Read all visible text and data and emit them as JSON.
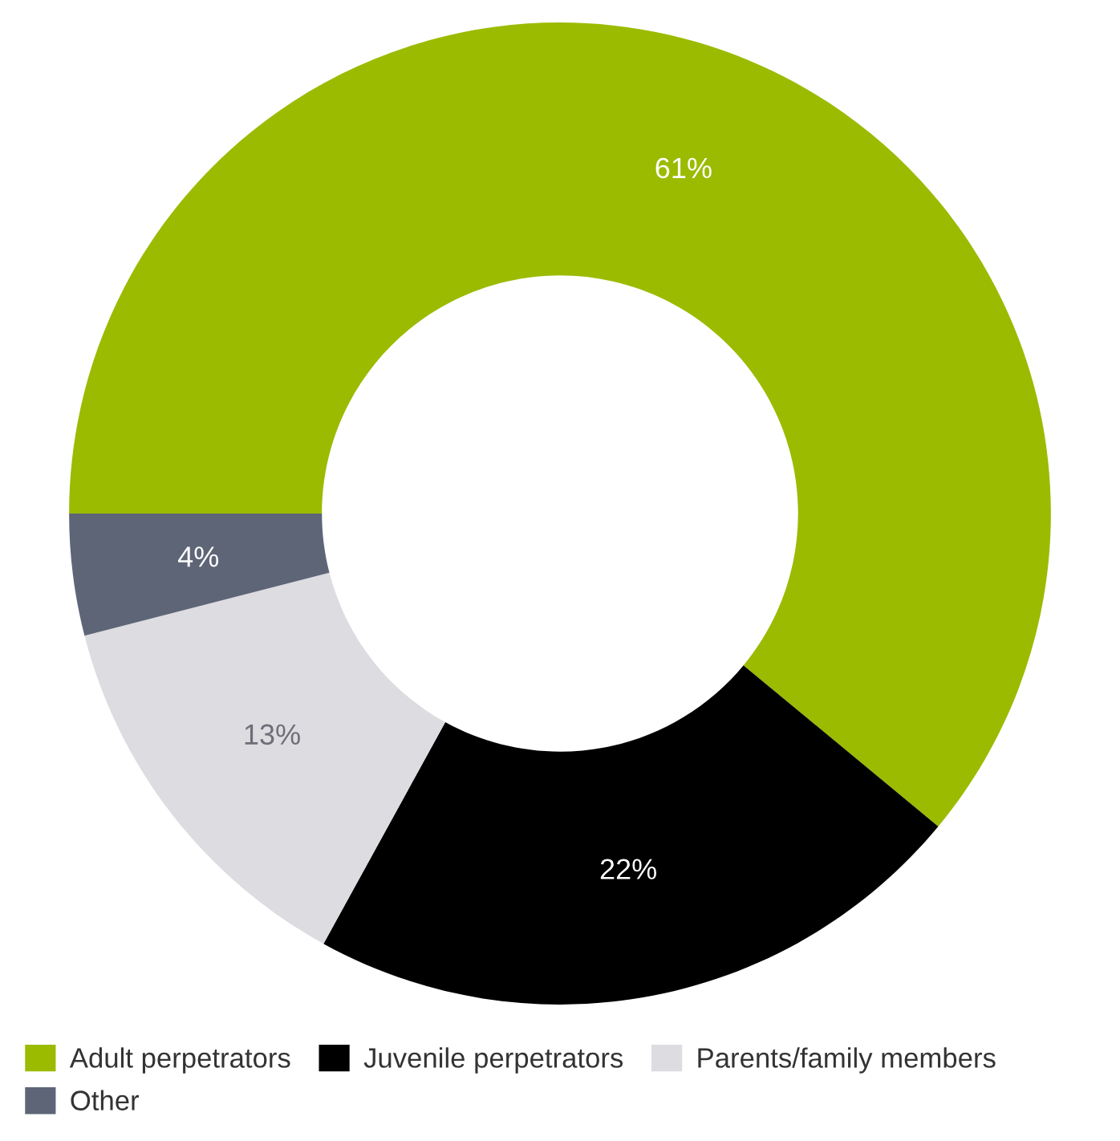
{
  "chart_data": {
    "type": "donut",
    "categories": [
      "Adult perpetrators",
      "Juvenile perpetrators",
      "Parents/family members",
      "Other"
    ],
    "values": [
      61,
      22,
      13,
      4
    ],
    "colors": [
      "#9bbb00",
      "#000000",
      "#dcdce1",
      "#5e6577"
    ],
    "value_labels": [
      "61%",
      "22%",
      "13%",
      "4%"
    ],
    "legend": "bottom"
  }
}
